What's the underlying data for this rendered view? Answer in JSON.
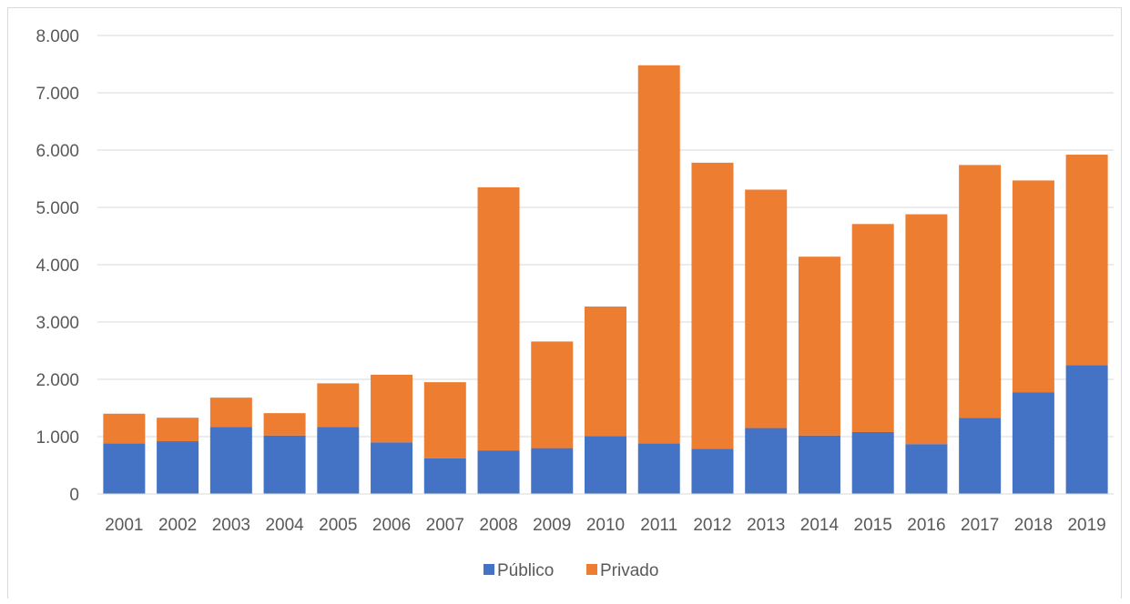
{
  "chart_data": {
    "type": "bar",
    "stacked": true,
    "categories": [
      "2001",
      "2002",
      "2003",
      "2004",
      "2005",
      "2006",
      "2007",
      "2008",
      "2009",
      "2010",
      "2011",
      "2012",
      "2013",
      "2014",
      "2015",
      "2016",
      "2017",
      "2018",
      "2019"
    ],
    "series": [
      {
        "name": "Público",
        "color": "#4472c4",
        "values": [
          880,
          920,
          1170,
          1020,
          1170,
          900,
          620,
          760,
          800,
          1010,
          880,
          790,
          1150,
          1020,
          1080,
          870,
          1330,
          1770,
          2250
        ]
      },
      {
        "name": "Privado",
        "color": "#ed7d31",
        "values": [
          520,
          410,
          510,
          390,
          760,
          1180,
          1330,
          4590,
          1860,
          2260,
          6600,
          4990,
          4160,
          3120,
          3630,
          4010,
          4410,
          3700,
          3670
        ]
      }
    ],
    "ylim": [
      0,
      8000
    ],
    "yticks": [
      0,
      1000,
      2000,
      3000,
      4000,
      5000,
      6000,
      7000,
      8000
    ],
    "ytick_labels": [
      "0",
      "1.000",
      "2.000",
      "3.000",
      "4.000",
      "5.000",
      "6.000",
      "7.000",
      "8.000"
    ],
    "grid": true,
    "legend_position": "bottom"
  }
}
